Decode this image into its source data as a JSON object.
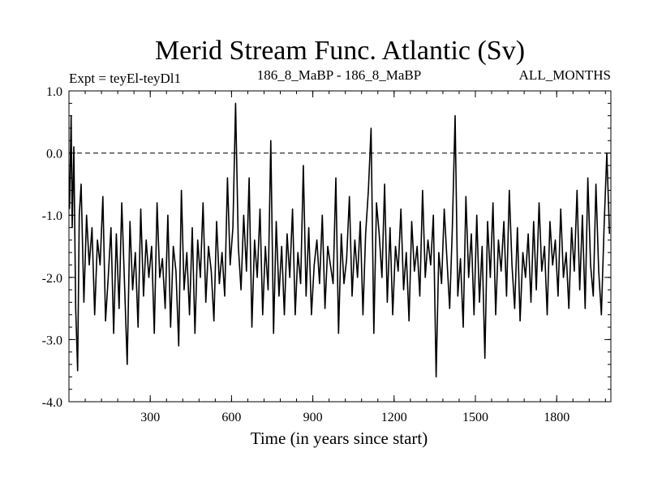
{
  "chart_data": {
    "type": "line",
    "title": "Merid Stream Func. Atlantic (Sv)",
    "subtitle_left": "Expt = teyEl-teyDl1",
    "subtitle_center": "186_8_MaBP - 186_8_MaBP",
    "subtitle_right": "ALL_MONTHS",
    "xlabel": "Time (in years since start)",
    "ylabel": "",
    "xlim": [
      0,
      2000
    ],
    "ylim": [
      -4.0,
      1.0
    ],
    "x_ticks": [
      300,
      600,
      900,
      1200,
      1500,
      1800
    ],
    "x_tick_labels": [
      "300",
      "600",
      "900",
      "1200",
      "1500",
      "1800"
    ],
    "y_ticks": [
      1.0,
      0.0,
      -1.0,
      -2.0,
      -3.0,
      -4.0
    ],
    "y_tick_labels": [
      "1.0",
      "0.0",
      "-1.0",
      "-2.0",
      "-3.0",
      "-4.0"
    ],
    "reference_line": {
      "y": 0.0,
      "style": "dashed"
    },
    "series": [
      {
        "name": "teyEl-teyDl1",
        "x": [
          2,
          8,
          12,
          18,
          25,
          32,
          38,
          45,
          55,
          65,
          75,
          85,
          95,
          105,
          115,
          125,
          135,
          145,
          155,
          165,
          175,
          185,
          195,
          205,
          215,
          225,
          235,
          245,
          255,
          265,
          275,
          285,
          295,
          305,
          315,
          325,
          335,
          345,
          355,
          365,
          375,
          385,
          395,
          405,
          415,
          425,
          435,
          445,
          455,
          465,
          475,
          485,
          495,
          505,
          515,
          525,
          535,
          545,
          555,
          565,
          575,
          585,
          595,
          605,
          615,
          625,
          635,
          645,
          655,
          665,
          675,
          685,
          695,
          705,
          715,
          725,
          735,
          745,
          755,
          765,
          775,
          785,
          795,
          805,
          815,
          825,
          835,
          845,
          855,
          865,
          875,
          885,
          895,
          905,
          915,
          925,
          935,
          945,
          955,
          965,
          975,
          985,
          995,
          1005,
          1015,
          1025,
          1035,
          1045,
          1055,
          1065,
          1075,
          1085,
          1095,
          1105,
          1115,
          1125,
          1135,
          1145,
          1155,
          1165,
          1175,
          1185,
          1195,
          1205,
          1215,
          1225,
          1235,
          1245,
          1255,
          1265,
          1275,
          1285,
          1295,
          1305,
          1315,
          1325,
          1335,
          1345,
          1355,
          1365,
          1375,
          1385,
          1395,
          1405,
          1415,
          1425,
          1435,
          1445,
          1455,
          1465,
          1475,
          1485,
          1495,
          1505,
          1515,
          1525,
          1535,
          1545,
          1555,
          1565,
          1575,
          1585,
          1595,
          1605,
          1615,
          1625,
          1635,
          1645,
          1655,
          1665,
          1675,
          1685,
          1695,
          1705,
          1715,
          1725,
          1735,
          1745,
          1755,
          1765,
          1775,
          1785,
          1795,
          1805,
          1815,
          1825,
          1835,
          1845,
          1855,
          1865,
          1875,
          1885,
          1895,
          1905,
          1915,
          1925,
          1935,
          1945,
          1955,
          1965,
          1975,
          1985,
          1995
        ],
        "y": [
          -0.9,
          0.6,
          -1.2,
          0.1,
          -2.5,
          -3.5,
          -1.0,
          -0.5,
          -2.4,
          -1.0,
          -1.8,
          -1.2,
          -2.6,
          -1.4,
          -1.8,
          -0.7,
          -2.7,
          -2.0,
          -1.2,
          -2.9,
          -1.3,
          -2.5,
          -0.8,
          -2.1,
          -3.4,
          -1.1,
          -2.2,
          -1.6,
          -2.8,
          -0.9,
          -2.3,
          -1.4,
          -2.0,
          -1.5,
          -2.9,
          -0.8,
          -2.0,
          -1.7,
          -2.5,
          -1.0,
          -2.8,
          -1.5,
          -1.9,
          -3.1,
          -0.6,
          -2.2,
          -1.6,
          -2.6,
          -1.2,
          -2.9,
          -1.4,
          -2.0,
          -0.8,
          -2.4,
          -1.5,
          -1.9,
          -2.7,
          -1.1,
          -2.1,
          -1.6,
          -2.3,
          -0.4,
          -1.8,
          -1.2,
          0.8,
          -1.5,
          -2.2,
          -1.0,
          -1.9,
          -0.4,
          -2.8,
          -1.4,
          -2.0,
          -0.9,
          -2.6,
          -1.5,
          -2.2,
          0.2,
          -2.9,
          -1.1,
          -2.3,
          -1.5,
          -2.6,
          -1.3,
          -2.0,
          -0.9,
          -2.6,
          -1.6,
          -2.1,
          -0.2,
          -2.3,
          -1.2,
          -2.6,
          -1.8,
          -1.4,
          -2.1,
          -1.0,
          -2.5,
          -1.5,
          -1.8,
          -2.1,
          -0.4,
          -2.9,
          -1.3,
          -2.1,
          -1.7,
          -0.7,
          -2.3,
          -1.4,
          -2.0,
          -1.1,
          -2.6,
          -1.3,
          -0.6,
          0.4,
          -2.9,
          -0.8,
          -1.3,
          -2.0,
          -0.5,
          -2.4,
          -1.2,
          -2.6,
          -1.5,
          -1.9,
          -0.9,
          -2.2,
          -1.6,
          -2.7,
          -1.1,
          -1.9,
          -1.5,
          -2.3,
          -0.6,
          -2.0,
          -1.4,
          -1.8,
          -1.0,
          -3.6,
          -1.6,
          -2.1,
          -0.9,
          -1.7,
          -2.5,
          -1.2,
          0.6,
          -2.3,
          -1.7,
          -2.8,
          -0.7,
          -2.0,
          -1.3,
          -2.6,
          -1.0,
          -2.4,
          -1.5,
          -3.3,
          -1.1,
          -2.0,
          -0.8,
          -2.6,
          -1.4,
          -1.9,
          -1.1,
          -2.3,
          -0.6,
          -1.8,
          -2.5,
          -1.2,
          -2.7,
          -1.6,
          -2.0,
          -1.3,
          -2.4,
          -1.1,
          -2.2,
          -0.8,
          -1.9,
          -1.5,
          -2.6,
          -1.1,
          -1.8,
          -1.4,
          -2.3,
          -0.9,
          -2.0,
          -1.6,
          -2.5,
          -1.2,
          -1.9,
          -0.6,
          -2.2,
          -1.0,
          -2.5,
          -0.4,
          -1.8,
          -2.3,
          -0.5,
          -1.9,
          -2.6,
          -1.2,
          0.0,
          -1.3
        ]
      }
    ]
  }
}
